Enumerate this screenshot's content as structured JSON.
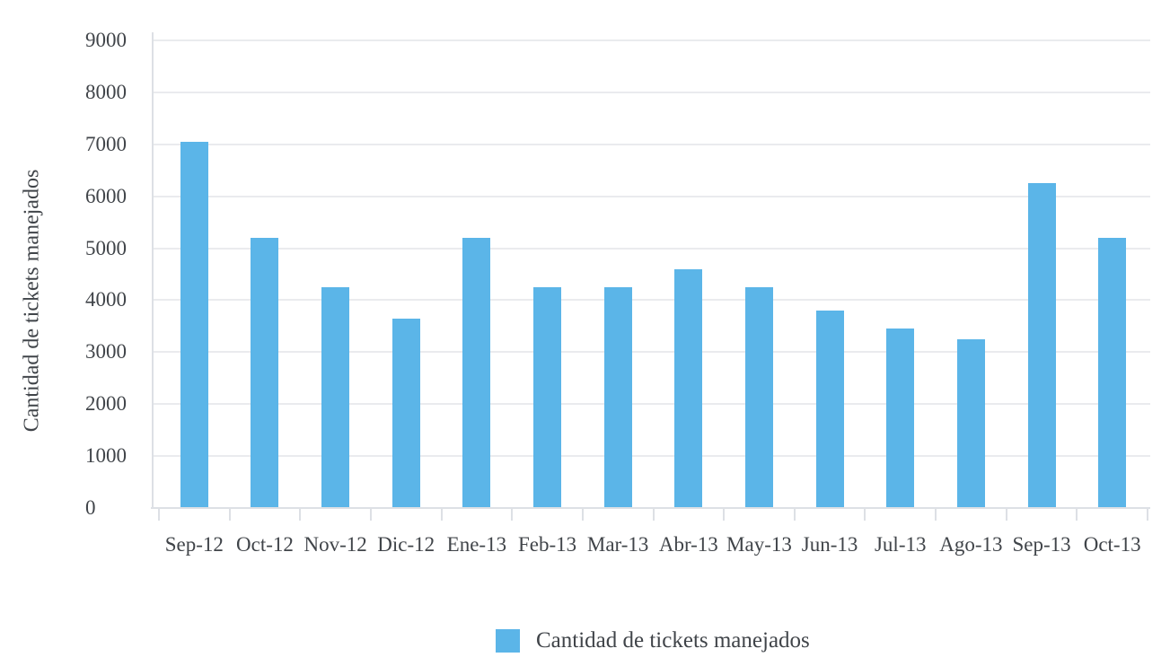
{
  "chart_data": {
    "type": "bar",
    "title": "",
    "categories": [
      "Sep-12",
      "Oct-12",
      "Nov-12",
      "Dic-12",
      "Ene-13",
      "Feb-13",
      "Mar-13",
      "Abr-13",
      "May-13",
      "Jun-13",
      "Jul-13",
      "Ago-13",
      "Sep-13",
      "Oct-13"
    ],
    "series": [
      {
        "name": "Cantidad de tickets manejados",
        "values": [
          7050,
          5200,
          4250,
          3650,
          5200,
          4250,
          4250,
          4600,
          4250,
          3800,
          3450,
          3250,
          6250,
          5200
        ]
      }
    ],
    "xlabel": "",
    "ylabel": "Cantidad de tickets manejados",
    "ylim": [
      0,
      9000
    ],
    "ytick_step": 1000,
    "ytick_labels": [
      "0",
      "1000",
      "2000",
      "3000",
      "4000",
      "5000",
      "6000",
      "7000",
      "8000",
      "9000"
    ],
    "grid": true,
    "legend_position": "bottom"
  },
  "legend": {
    "label": "Cantidad de tickets manejados"
  },
  "colors": {
    "bar": "#5BB5E8",
    "gridline": "#EAEBEE",
    "axis": "#DDE0E5",
    "text": "#404449",
    "background": "#FFFFFF"
  }
}
